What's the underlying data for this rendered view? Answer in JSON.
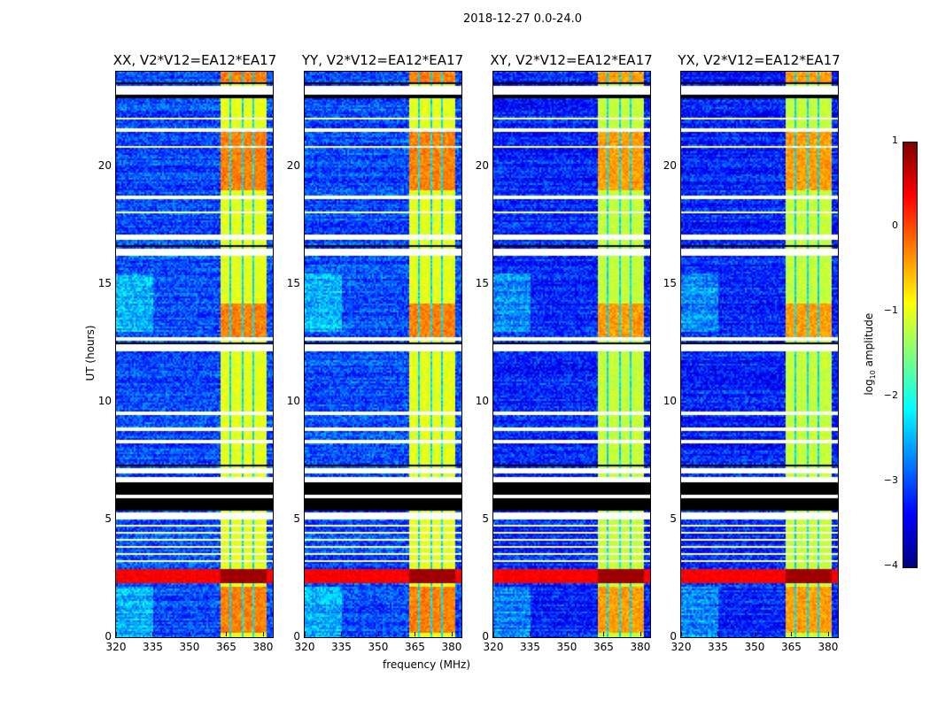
{
  "chart_data": {
    "type": "heatmap",
    "title": "2018-12-27 0.0-24.0",
    "xlabel": "frequency (MHz)",
    "ylabel": "UT (hours)",
    "xlim": [
      320,
      384
    ],
    "ylim": [
      0,
      24
    ],
    "xticks": [
      "320",
      "335",
      "350",
      "365",
      "380"
    ],
    "yticks": [
      "0",
      "5",
      "10",
      "15",
      "20"
    ],
    "panels": [
      {
        "title": "XX, V2*V12=EA12*EA17"
      },
      {
        "title": "YY, V2*V12=EA12*EA17"
      },
      {
        "title": "XY, V2*V12=EA12*EA17"
      },
      {
        "title": "YX, V2*V12=EA12*EA17"
      }
    ],
    "colorbar": {
      "label_main": "log",
      "label_sub": "10",
      "label_rest": " amplitude",
      "range": [
        -4,
        1
      ],
      "ticks": [
        "1",
        "0",
        "−1",
        "−2",
        "−3",
        "−4"
      ],
      "colormap": "jet"
    },
    "background_log_amp": -3,
    "rfi_band_mhz": [
      362,
      381
    ],
    "rfi_gaps_mhz": [
      366.5,
      371.2,
      375.8
    ],
    "rfi_band_log_amp": -1,
    "strong_band_hours": [
      2.3,
      2.9
    ],
    "strong_band_log_amp": 0.4,
    "flagged_black_hours": [
      [
        5.4,
        5.95
      ],
      [
        6.05,
        6.6
      ],
      [
        16.6,
        16.7
      ],
      [
        22.9,
        23.05
      ],
      [
        23.5,
        23.6
      ],
      [
        12.5,
        12.55
      ],
      [
        9.0,
        9.05
      ],
      [
        7.3,
        7.35
      ]
    ],
    "flagged_white_hours": [
      [
        5.95,
        6.05
      ],
      [
        4.7,
        4.8
      ],
      [
        4.4,
        4.5
      ],
      [
        4.1,
        4.2
      ],
      [
        3.8,
        3.9
      ],
      [
        3.5,
        3.6
      ],
      [
        3.2,
        3.3
      ],
      [
        5.0,
        5.3
      ],
      [
        6.6,
        6.8
      ],
      [
        7.0,
        7.2
      ],
      [
        8.3,
        8.4
      ],
      [
        8.8,
        8.95
      ],
      [
        9.5,
        9.6
      ],
      [
        12.2,
        12.45
      ],
      [
        12.6,
        12.8
      ],
      [
        16.2,
        16.5
      ],
      [
        16.9,
        17.1
      ],
      [
        18.0,
        18.1
      ],
      [
        18.6,
        18.8
      ],
      [
        20.8,
        20.9
      ],
      [
        21.5,
        21.6
      ],
      [
        23.05,
        23.4
      ],
      [
        22.0,
        22.05
      ]
    ]
  }
}
